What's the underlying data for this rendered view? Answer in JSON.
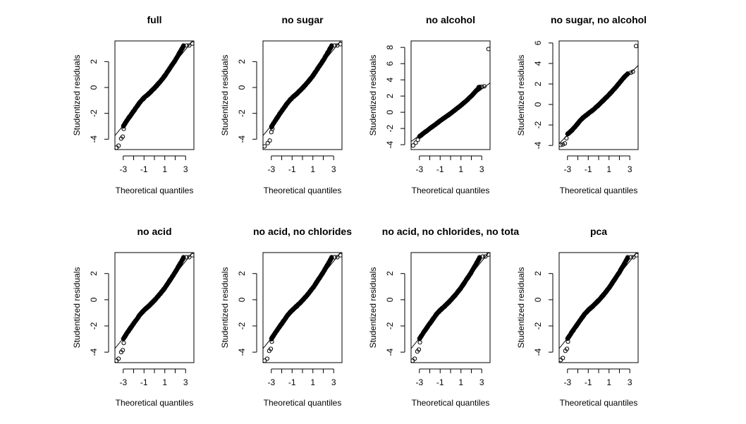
{
  "figure": {
    "panels": [
      {
        "title": "full",
        "xlabel": "Theoretical quantiles",
        "ylabel": "Studentized residuals"
      },
      {
        "title": "no sugar",
        "xlabel": "Theoretical quantiles",
        "ylabel": "Studentized residuals"
      },
      {
        "title": "no alcohol",
        "xlabel": "Theoretical quantiles",
        "ylabel": "Studentized residuals"
      },
      {
        "title": "no sugar, no alcohol",
        "xlabel": "Theoretical quantiles",
        "ylabel": "Studentized residuals"
      },
      {
        "title": "no acid",
        "xlabel": "Theoretical quantiles",
        "ylabel": "Studentized residuals"
      },
      {
        "title": "no acid, no chlorides",
        "xlabel": "Theoretical quantiles",
        "ylabel": "Studentized residuals"
      },
      {
        "title": "no acid, no chlorides, no tota",
        "xlabel": "Theoretical quantiles",
        "ylabel": "Studentized residuals"
      },
      {
        "title": "pca",
        "xlabel": "Theoretical quantiles",
        "ylabel": "Studentized residuals"
      }
    ]
  },
  "chart_data": [
    {
      "type": "scatter",
      "title": "full",
      "xlabel": "Theoretical quantiles",
      "ylabel": "Studentized residuals",
      "xlim": [
        -3.8,
        3.8
      ],
      "ylim": [
        -4.8,
        3.6
      ],
      "xticks": [
        -3,
        -1,
        1,
        3
      ],
      "yticks": [
        -4,
        -2,
        0,
        2
      ],
      "grid": false,
      "reference_line": {
        "slope": 0.98,
        "intercept": 0.0
      },
      "tails": {
        "low": [
          [
            -3.65,
            -4.65
          ],
          [
            -3.45,
            -4.5
          ],
          [
            -3.2,
            -3.95
          ],
          [
            -3.05,
            -3.8
          ],
          [
            -2.95,
            -3.2
          ]
        ],
        "high": [
          [
            2.8,
            3.25
          ],
          [
            3.1,
            3.25
          ],
          [
            3.35,
            3.25
          ],
          [
            3.65,
            3.4
          ]
        ]
      },
      "core": {
        "x": [
          -3.0,
          -2.6,
          -2.2,
          -1.8,
          -1.4,
          -1.0,
          -0.5,
          0.0,
          0.5,
          1.0,
          1.5,
          2.0,
          2.4,
          2.8
        ],
        "y": [
          -3.0,
          -2.5,
          -2.05,
          -1.6,
          -1.15,
          -0.8,
          -0.45,
          -0.05,
          0.4,
          0.9,
          1.5,
          2.1,
          2.65,
          3.2
        ]
      }
    },
    {
      "type": "scatter",
      "title": "no sugar",
      "xlabel": "Theoretical quantiles",
      "ylabel": "Studentized residuals",
      "xlim": [
        -3.8,
        3.8
      ],
      "ylim": [
        -4.8,
        3.6
      ],
      "xticks": [
        -3,
        -1,
        1,
        3
      ],
      "yticks": [
        -4,
        -2,
        0,
        2
      ],
      "grid": false,
      "reference_line": {
        "slope": 0.98,
        "intercept": 0.0
      },
      "tails": {
        "low": [
          [
            -3.65,
            -4.55
          ],
          [
            -3.35,
            -4.3
          ],
          [
            -3.15,
            -4.1
          ],
          [
            -3.0,
            -3.45
          ],
          [
            -2.9,
            -3.2
          ]
        ],
        "high": [
          [
            2.8,
            3.25
          ],
          [
            3.1,
            3.25
          ],
          [
            3.35,
            3.25
          ],
          [
            3.65,
            3.35
          ]
        ]
      },
      "core": {
        "x": [
          -3.0,
          -2.6,
          -2.2,
          -1.8,
          -1.4,
          -1.0,
          -0.5,
          0.0,
          0.5,
          1.0,
          1.5,
          2.0,
          2.4,
          2.8
        ],
        "y": [
          -3.05,
          -2.55,
          -2.05,
          -1.6,
          -1.15,
          -0.8,
          -0.45,
          -0.05,
          0.4,
          0.9,
          1.5,
          2.1,
          2.65,
          3.2
        ]
      }
    },
    {
      "type": "scatter",
      "title": "no alcohol",
      "xlabel": "Theoretical quantiles",
      "ylabel": "Studentized residuals",
      "xlim": [
        -3.8,
        3.8
      ],
      "ylim": [
        -4.6,
        8.8
      ],
      "xticks": [
        -3,
        -1,
        1,
        3
      ],
      "yticks": [
        -4,
        -2,
        0,
        2,
        4,
        6,
        8
      ],
      "grid": false,
      "reference_line": {
        "slope": 0.95,
        "intercept": 0.0
      },
      "tails": {
        "low": [
          [
            -3.6,
            -4.1
          ],
          [
            -3.35,
            -3.75
          ],
          [
            -3.15,
            -3.4
          ],
          [
            -2.95,
            -2.9
          ]
        ],
        "high": [
          [
            2.7,
            3.1
          ],
          [
            3.0,
            3.15
          ],
          [
            3.25,
            3.2
          ],
          [
            3.65,
            7.8
          ]
        ]
      },
      "core": {
        "x": [
          -3.0,
          -2.5,
          -2.0,
          -1.5,
          -1.0,
          -0.5,
          0.0,
          0.5,
          1.0,
          1.5,
          2.0,
          2.5,
          2.8
        ],
        "y": [
          -3.0,
          -2.5,
          -2.0,
          -1.55,
          -1.05,
          -0.6,
          -0.15,
          0.35,
          0.85,
          1.4,
          2.0,
          2.7,
          3.1
        ]
      }
    },
    {
      "type": "scatter",
      "title": "no sugar, no alcohol",
      "xlabel": "Theoretical quantiles",
      "ylabel": "Studentized residuals",
      "xlim": [
        -3.8,
        3.8
      ],
      "ylim": [
        -4.4,
        6.2
      ],
      "xticks": [
        -3,
        -1,
        1,
        3
      ],
      "yticks": [
        -4,
        -2,
        0,
        2,
        4,
        6
      ],
      "grid": false,
      "reference_line": {
        "slope": 1.0,
        "intercept": 0.0
      },
      "tails": {
        "low": [
          [
            -3.65,
            -3.95
          ],
          [
            -3.45,
            -3.9
          ],
          [
            -3.25,
            -3.8
          ],
          [
            -3.1,
            -3.3
          ],
          [
            -2.95,
            -2.85
          ]
        ],
        "high": [
          [
            2.8,
            3.0
          ],
          [
            3.1,
            3.1
          ],
          [
            3.3,
            3.2
          ],
          [
            3.6,
            5.7
          ]
        ]
      },
      "core": {
        "x": [
          -3.0,
          -2.6,
          -2.2,
          -1.8,
          -1.4,
          -1.0,
          -0.5,
          0.0,
          0.5,
          1.0,
          1.5,
          2.0,
          2.4,
          2.8
        ],
        "y": [
          -2.9,
          -2.55,
          -2.1,
          -1.6,
          -1.2,
          -0.9,
          -0.5,
          -0.05,
          0.45,
          0.95,
          1.5,
          2.1,
          2.6,
          3.0
        ]
      }
    },
    {
      "type": "scatter",
      "title": "no acid",
      "xlabel": "Theoretical quantiles",
      "ylabel": "Studentized residuals",
      "xlim": [
        -3.8,
        3.8
      ],
      "ylim": [
        -4.8,
        3.6
      ],
      "xticks": [
        -3,
        -1,
        1,
        3
      ],
      "yticks": [
        -4,
        -2,
        0,
        2
      ],
      "grid": false,
      "reference_line": {
        "slope": 0.98,
        "intercept": 0.0
      },
      "tails": {
        "low": [
          [
            -3.65,
            -4.65
          ],
          [
            -3.45,
            -4.5
          ],
          [
            -3.2,
            -4.0
          ],
          [
            -3.05,
            -3.85
          ],
          [
            -2.95,
            -3.3
          ]
        ],
        "high": [
          [
            2.8,
            3.25
          ],
          [
            3.1,
            3.25
          ],
          [
            3.35,
            3.25
          ],
          [
            3.65,
            3.4
          ]
        ]
      },
      "core": {
        "x": [
          -3.0,
          -2.6,
          -2.2,
          -1.8,
          -1.4,
          -1.0,
          -0.5,
          0.0,
          0.5,
          1.0,
          1.5,
          2.0,
          2.4,
          2.8
        ],
        "y": [
          -3.0,
          -2.5,
          -2.05,
          -1.6,
          -1.15,
          -0.8,
          -0.45,
          -0.05,
          0.4,
          0.9,
          1.5,
          2.1,
          2.65,
          3.2
        ]
      }
    },
    {
      "type": "scatter",
      "title": "no acid, no chlorides",
      "xlabel": "Theoretical quantiles",
      "ylabel": "Studentized residuals",
      "xlim": [
        -3.8,
        3.8
      ],
      "ylim": [
        -4.8,
        3.6
      ],
      "xticks": [
        -3,
        -1,
        1,
        3
      ],
      "yticks": [
        -4,
        -2,
        0,
        2
      ],
      "grid": false,
      "reference_line": {
        "slope": 0.98,
        "intercept": 0.0
      },
      "tails": {
        "low": [
          [
            -3.65,
            -4.65
          ],
          [
            -3.4,
            -4.5
          ],
          [
            -3.2,
            -3.9
          ],
          [
            -3.05,
            -3.75
          ],
          [
            -2.95,
            -3.2
          ]
        ],
        "high": [
          [
            2.8,
            3.25
          ],
          [
            3.1,
            3.25
          ],
          [
            3.35,
            3.25
          ],
          [
            3.65,
            3.4
          ]
        ]
      },
      "core": {
        "x": [
          -3.0,
          -2.6,
          -2.2,
          -1.8,
          -1.4,
          -1.0,
          -0.5,
          0.0,
          0.5,
          1.0,
          1.5,
          2.0,
          2.4,
          2.8
        ],
        "y": [
          -3.0,
          -2.5,
          -2.05,
          -1.6,
          -1.15,
          -0.8,
          -0.45,
          -0.05,
          0.4,
          0.9,
          1.5,
          2.1,
          2.65,
          3.2
        ]
      }
    },
    {
      "type": "scatter",
      "title": "no acid, no chlorides, no tota",
      "xlabel": "Theoretical quantiles",
      "ylabel": "Studentized residuals",
      "xlim": [
        -3.8,
        3.8
      ],
      "ylim": [
        -4.8,
        3.6
      ],
      "xticks": [
        -3,
        -1,
        1,
        3
      ],
      "yticks": [
        -4,
        -2,
        0,
        2
      ],
      "grid": false,
      "reference_line": {
        "slope": 0.98,
        "intercept": 0.0
      },
      "tails": {
        "low": [
          [
            -3.65,
            -4.65
          ],
          [
            -3.45,
            -4.5
          ],
          [
            -3.2,
            -3.95
          ],
          [
            -3.05,
            -3.8
          ],
          [
            -2.95,
            -3.25
          ]
        ],
        "high": [
          [
            2.8,
            3.25
          ],
          [
            3.1,
            3.3
          ],
          [
            3.35,
            3.3
          ],
          [
            3.65,
            3.45
          ]
        ]
      },
      "core": {
        "x": [
          -3.0,
          -2.6,
          -2.2,
          -1.8,
          -1.4,
          -1.0,
          -0.5,
          0.0,
          0.5,
          1.0,
          1.5,
          2.0,
          2.4,
          2.8
        ],
        "y": [
          -3.0,
          -2.5,
          -2.05,
          -1.6,
          -1.15,
          -0.8,
          -0.45,
          -0.05,
          0.4,
          0.9,
          1.5,
          2.1,
          2.65,
          3.2
        ]
      }
    },
    {
      "type": "scatter",
      "title": "pca",
      "xlabel": "Theoretical quantiles",
      "ylabel": "Studentized residuals",
      "xlim": [
        -3.8,
        3.8
      ],
      "ylim": [
        -4.8,
        3.6
      ],
      "xticks": [
        -3,
        -1,
        1,
        3
      ],
      "yticks": [
        -4,
        -2,
        0,
        2
      ],
      "grid": false,
      "reference_line": {
        "slope": 0.98,
        "intercept": 0.0
      },
      "tails": {
        "low": [
          [
            -3.65,
            -4.6
          ],
          [
            -3.45,
            -4.45
          ],
          [
            -3.2,
            -3.9
          ],
          [
            -3.05,
            -3.75
          ],
          [
            -2.95,
            -3.2
          ]
        ],
        "high": [
          [
            2.8,
            3.25
          ],
          [
            3.1,
            3.25
          ],
          [
            3.35,
            3.25
          ],
          [
            3.65,
            3.4
          ]
        ]
      },
      "core": {
        "x": [
          -3.0,
          -2.6,
          -2.2,
          -1.8,
          -1.4,
          -1.0,
          -0.5,
          0.0,
          0.5,
          1.0,
          1.5,
          2.0,
          2.4,
          2.8
        ],
        "y": [
          -3.0,
          -2.5,
          -2.05,
          -1.6,
          -1.15,
          -0.8,
          -0.45,
          -0.05,
          0.4,
          0.9,
          1.5,
          2.1,
          2.65,
          3.2
        ]
      }
    }
  ]
}
